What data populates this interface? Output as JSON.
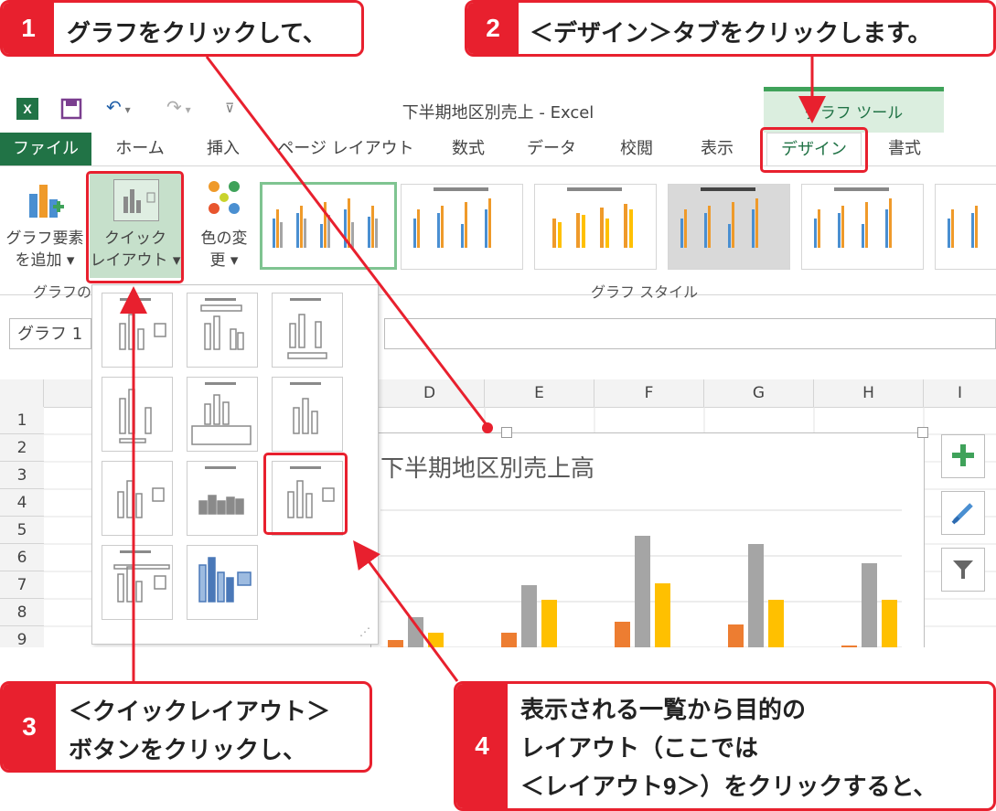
{
  "window": {
    "title": "下半期地区別売上 - Excel",
    "context_tab_group": "グラフ ツール"
  },
  "tabs": {
    "file": "ファイル",
    "home": "ホーム",
    "insert": "挿入",
    "page_layout": "ページ レイアウト",
    "formulas": "数式",
    "data": "データ",
    "review": "校閲",
    "view": "表示",
    "design": "デザイン",
    "format": "書式"
  },
  "ribbon": {
    "add_element_line1": "グラフ要素",
    "add_element_line2": "を追加 ▾",
    "quick_layout_line1": "クイック",
    "quick_layout_line2": "レイアウト ▾",
    "change_colors_line1": "色の変",
    "change_colors_line2": "更 ▾",
    "group_layouts": "グラフのし",
    "group_styles": "グラフ スタイル"
  },
  "name_box": "グラフ 1",
  "columns": [
    "D",
    "E",
    "F",
    "G",
    "H",
    "I"
  ],
  "rows": [
    "1",
    "2",
    "3",
    "4",
    "5",
    "6",
    "7",
    "8",
    "9"
  ],
  "chart": {
    "title": "下半期地区別売上高"
  },
  "chart_data": {
    "type": "bar",
    "title": "下半期地区別売上高",
    "series": [
      {
        "color": "#ed7d31",
        "values": [
          8,
          16,
          28,
          25,
          2
        ]
      },
      {
        "color": "#a5a5a5",
        "values": [
          33,
          68,
          122,
          113,
          92
        ]
      },
      {
        "color": "#ffc000",
        "values": [
          16,
          52,
          70,
          52,
          52
        ]
      }
    ]
  },
  "callouts": {
    "c1": {
      "num": "1",
      "text": "グラフをクリックして、"
    },
    "c2": {
      "num": "2",
      "text": "＜デザイン＞タブをクリックします。"
    },
    "c3": {
      "num": "3",
      "line1": "＜クイックレイアウト＞",
      "line2": "ボタンをクリックし、"
    },
    "c4": {
      "num": "4",
      "line1": "表示される一覧から目的の",
      "line2": "レイアウト（ここでは",
      "line3": "＜レイアウト9＞）をクリックすると、"
    }
  }
}
